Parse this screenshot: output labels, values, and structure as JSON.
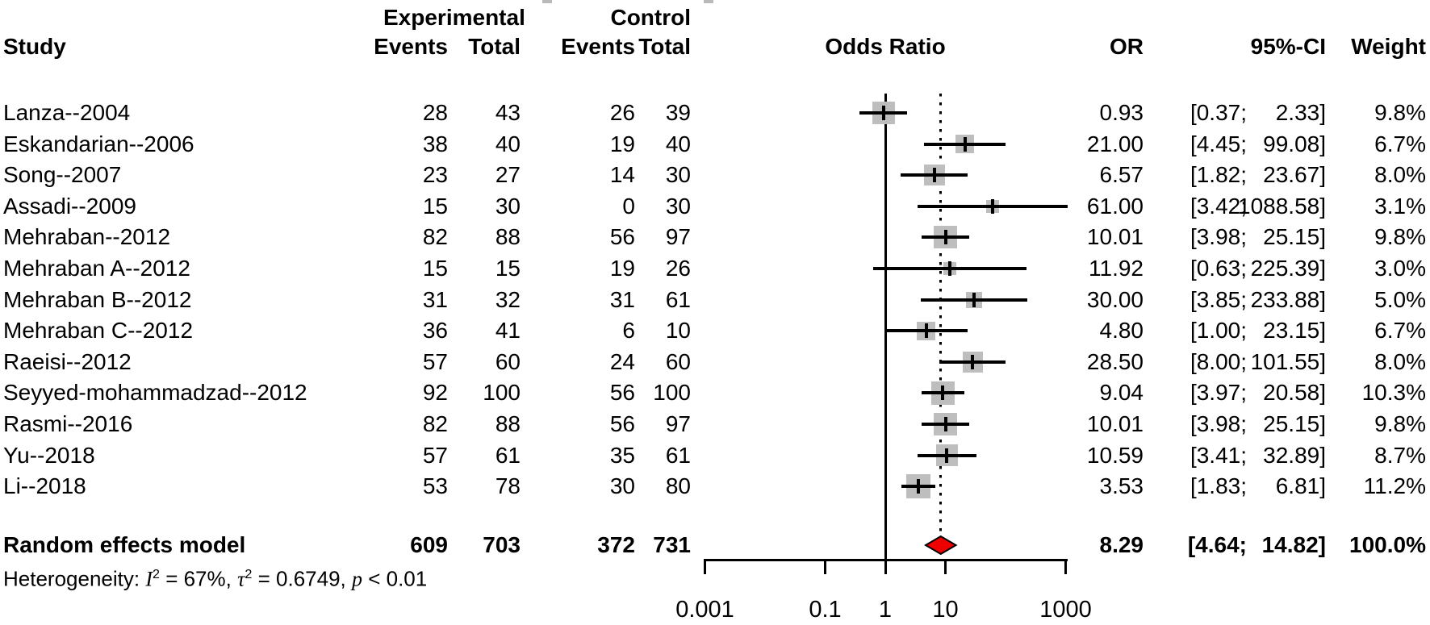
{
  "headers": {
    "study": "Study",
    "experimental": "Experimental",
    "control": "Control",
    "events": "Events",
    "total": "Total",
    "odds_ratio": "Odds Ratio",
    "or": "OR",
    "ci": "95%-CI",
    "weight": "Weight"
  },
  "heterogeneity": {
    "prefix": "Heterogeneity: ",
    "i_symbol": "I",
    "i_sup": "2",
    "i_rest": " = 67%, ",
    "tau_symbol": "τ",
    "tau_sup": "2",
    "tau_rest": " = 0.6749, ",
    "p_symbol": "p",
    "p_rest": " < 0.01"
  },
  "colors": {
    "square": "#bebebe",
    "diamond_fill": "#ee0000",
    "diamond_border": "#000000",
    "line": "#000000"
  },
  "chart_data": {
    "type": "forest",
    "effect_measure": "Odds Ratio",
    "model": "Random effects model",
    "x_axis": {
      "scale": "log",
      "range": [
        0.001,
        1000
      ],
      "ticks": [
        0.001,
        0.1,
        1,
        10,
        1000
      ],
      "tick_labels": [
        "0.001",
        "0.1",
        "1",
        "10",
        "1000"
      ],
      "reference_line": 1
    },
    "studies": [
      {
        "name": "Lanza--2004",
        "events_exp": "28",
        "total_exp": "43",
        "events_ctrl": "26",
        "total_ctrl": "39",
        "or": 0.93,
        "or_text": "0.93",
        "ci_low": 0.37,
        "ci_high": 2.33,
        "ci_low_text": "[0.37;",
        "ci_high_text": "2.33]",
        "weight": 9.8,
        "weight_text": "9.8%"
      },
      {
        "name": "Eskandarian--2006",
        "events_exp": "38",
        "total_exp": "40",
        "events_ctrl": "19",
        "total_ctrl": "40",
        "or": 21.0,
        "or_text": "21.00",
        "ci_low": 4.45,
        "ci_high": 99.08,
        "ci_low_text": "[4.45;",
        "ci_high_text": "99.08]",
        "weight": 6.7,
        "weight_text": "6.7%"
      },
      {
        "name": "Song--2007",
        "events_exp": "23",
        "total_exp": "27",
        "events_ctrl": "14",
        "total_ctrl": "30",
        "or": 6.57,
        "or_text": "6.57",
        "ci_low": 1.82,
        "ci_high": 23.67,
        "ci_low_text": "[1.82;",
        "ci_high_text": "23.67]",
        "weight": 8.0,
        "weight_text": "8.0%"
      },
      {
        "name": "Assadi--2009",
        "events_exp": "15",
        "total_exp": "30",
        "events_ctrl": "0",
        "total_ctrl": "30",
        "or": 61.0,
        "or_text": "61.00",
        "ci_low": 3.42,
        "ci_high": 1088.58,
        "ci_low_text": "[3.42;",
        "ci_high_text": "1088.58]",
        "weight": 3.1,
        "weight_text": "3.1%"
      },
      {
        "name": "Mehraban--2012",
        "events_exp": "82",
        "total_exp": "88",
        "events_ctrl": "56",
        "total_ctrl": "97",
        "or": 10.01,
        "or_text": "10.01",
        "ci_low": 3.98,
        "ci_high": 25.15,
        "ci_low_text": "[3.98;",
        "ci_high_text": "25.15]",
        "weight": 9.8,
        "weight_text": "9.8%"
      },
      {
        "name": "Mehraban A--2012",
        "events_exp": "15",
        "total_exp": "15",
        "events_ctrl": "19",
        "total_ctrl": "26",
        "or": 11.92,
        "or_text": "11.92",
        "ci_low": 0.63,
        "ci_high": 225.39,
        "ci_low_text": "[0.63;",
        "ci_high_text": "225.39]",
        "weight": 3.0,
        "weight_text": "3.0%"
      },
      {
        "name": "Mehraban B--2012",
        "events_exp": "31",
        "total_exp": "32",
        "events_ctrl": "31",
        "total_ctrl": "61",
        "or": 30.0,
        "or_text": "30.00",
        "ci_low": 3.85,
        "ci_high": 233.88,
        "ci_low_text": "[3.85;",
        "ci_high_text": "233.88]",
        "weight": 5.0,
        "weight_text": "5.0%"
      },
      {
        "name": "Mehraban C--2012",
        "events_exp": "36",
        "total_exp": "41",
        "events_ctrl": "6",
        "total_ctrl": "10",
        "or": 4.8,
        "or_text": "4.80",
        "ci_low": 1.0,
        "ci_high": 23.15,
        "ci_low_text": "[1.00;",
        "ci_high_text": "23.15]",
        "weight": 6.7,
        "weight_text": "6.7%"
      },
      {
        "name": "Raeisi--2012",
        "events_exp": "57",
        "total_exp": "60",
        "events_ctrl": "24",
        "total_ctrl": "60",
        "or": 28.5,
        "or_text": "28.50",
        "ci_low": 8.0,
        "ci_high": 101.55,
        "ci_low_text": "[8.00;",
        "ci_high_text": "101.55]",
        "weight": 8.0,
        "weight_text": "8.0%"
      },
      {
        "name": "Seyyed-mohammadzad--2012",
        "events_exp": "92",
        "total_exp": "100",
        "events_ctrl": "56",
        "total_ctrl": "100",
        "or": 9.04,
        "or_text": "9.04",
        "ci_low": 3.97,
        "ci_high": 20.58,
        "ci_low_text": "[3.97;",
        "ci_high_text": "20.58]",
        "weight": 10.3,
        "weight_text": "10.3%"
      },
      {
        "name": "Rasmi--2016",
        "events_exp": "82",
        "total_exp": "88",
        "events_ctrl": "56",
        "total_ctrl": "97",
        "or": 10.01,
        "or_text": "10.01",
        "ci_low": 3.98,
        "ci_high": 25.15,
        "ci_low_text": "[3.98;",
        "ci_high_text": "25.15]",
        "weight": 9.8,
        "weight_text": "9.8%"
      },
      {
        "name": "Yu--2018",
        "events_exp": "57",
        "total_exp": "61",
        "events_ctrl": "35",
        "total_ctrl": "61",
        "or": 10.59,
        "or_text": "10.59",
        "ci_low": 3.41,
        "ci_high": 32.89,
        "ci_low_text": "[3.41;",
        "ci_high_text": "32.89]",
        "weight": 8.7,
        "weight_text": "8.7%"
      },
      {
        "name": "Li--2018",
        "events_exp": "53",
        "total_exp": "78",
        "events_ctrl": "30",
        "total_ctrl": "80",
        "or": 3.53,
        "or_text": "3.53",
        "ci_low": 1.83,
        "ci_high": 6.81,
        "ci_low_text": "[1.83;",
        "ci_high_text": "6.81]",
        "weight": 11.2,
        "weight_text": "11.2%"
      }
    ],
    "summary": {
      "label": "Random effects model",
      "events_exp": "609",
      "total_exp": "703",
      "events_ctrl": "372",
      "total_ctrl": "731",
      "or": 8.29,
      "or_text": "8.29",
      "ci_low": 4.64,
      "ci_high": 14.82,
      "ci_low_text": "[4.64;",
      "ci_high_text": "14.82]",
      "weight_text": "100.0%"
    }
  }
}
